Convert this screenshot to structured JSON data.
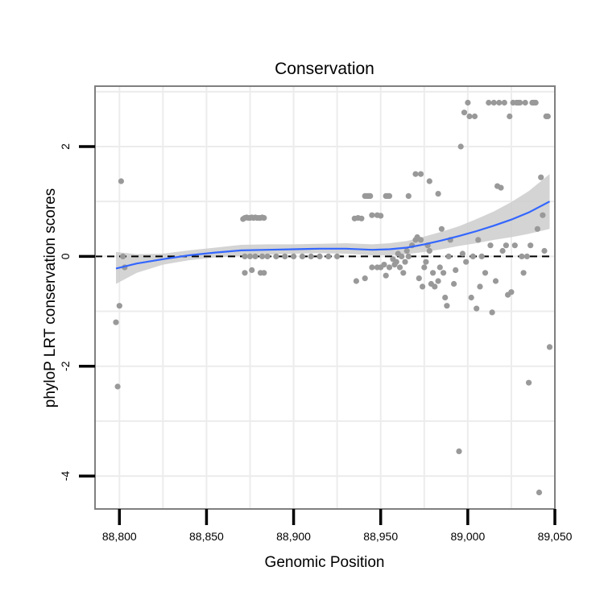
{
  "chart_data": {
    "type": "scatter",
    "title": "Conservation",
    "xlabel": "Genomic Position",
    "ylabel": "phyloP LRT conservation scores",
    "xlim": [
      88786,
      89050
    ],
    "ylim": [
      -4.6,
      3.1
    ],
    "xticks": [
      88800,
      88850,
      88900,
      88950,
      89000,
      89050
    ],
    "xtick_labels": [
      "88,800",
      "88,850",
      "88,900",
      "88,950",
      "89,000",
      "89,050"
    ],
    "yticks": [
      -4,
      -2,
      0,
      2
    ],
    "ytick_labels": [
      "-4",
      "-2",
      "0",
      "2"
    ],
    "grid": true,
    "reference_line": {
      "y": 0,
      "style": "dashed"
    },
    "colors": {
      "points": "#999999",
      "smooth_line": "#3366ff",
      "confidence_band": "#cccccc",
      "grid": "#ececec",
      "border": "#7f7f7f"
    },
    "points": [
      [
        88798,
        -1.2
      ],
      [
        88799,
        -2.37
      ],
      [
        88800,
        -0.9
      ],
      [
        88801,
        1.37
      ],
      [
        88802,
        0.0
      ],
      [
        88803,
        -0.2
      ],
      [
        88871,
        0.68
      ],
      [
        88872,
        0.7
      ],
      [
        88873,
        0.71
      ],
      [
        88874,
        0.7
      ],
      [
        88875,
        0.7
      ],
      [
        88876,
        0.71
      ],
      [
        88877,
        0.7
      ],
      [
        88878,
        0.71
      ],
      [
        88879,
        0.7
      ],
      [
        88880,
        0.7
      ],
      [
        88881,
        0.7
      ],
      [
        88882,
        0.71
      ],
      [
        88883,
        0.7
      ],
      [
        88872,
        -0.3
      ],
      [
        88876,
        -0.25
      ],
      [
        88881,
        -0.3
      ],
      [
        88883,
        -0.3
      ],
      [
        88872,
        0.0
      ],
      [
        88875,
        0.0
      ],
      [
        88878,
        0.0
      ],
      [
        88882,
        0.0
      ],
      [
        88885,
        0.0
      ],
      [
        88890,
        0.0
      ],
      [
        88895,
        0.0
      ],
      [
        88900,
        0.0
      ],
      [
        88905,
        0.0
      ],
      [
        88910,
        0.0
      ],
      [
        88915,
        0.0
      ],
      [
        88920,
        0.0
      ],
      [
        88925,
        0.0
      ],
      [
        88935,
        0.69
      ],
      [
        88937,
        0.7
      ],
      [
        88939,
        0.69
      ],
      [
        88941,
        1.1
      ],
      [
        88942,
        1.1
      ],
      [
        88943,
        1.1
      ],
      [
        88944,
        1.1
      ],
      [
        88945,
        0.75
      ],
      [
        88948,
        0.75
      ],
      [
        88950,
        0.74
      ],
      [
        88953,
        1.1
      ],
      [
        88954,
        1.1
      ],
      [
        88955,
        1.1
      ],
      [
        88966,
        1.1
      ],
      [
        88970,
        1.5
      ],
      [
        88973,
        1.5
      ],
      [
        88978,
        1.37
      ],
      [
        88983,
        1.14
      ],
      [
        88936,
        -0.45
      ],
      [
        88941,
        -0.4
      ],
      [
        88945,
        -0.2
      ],
      [
        88948,
        -0.2
      ],
      [
        88950,
        -0.2
      ],
      [
        88952,
        -0.15
      ],
      [
        88953,
        -0.35
      ],
      [
        88955,
        -0.2
      ],
      [
        88957,
        -0.05
      ],
      [
        88958,
        -0.15
      ],
      [
        88959,
        -0.1
      ],
      [
        88960,
        0.05
      ],
      [
        88961,
        -0.2
      ],
      [
        88962,
        0.0
      ],
      [
        88963,
        -0.3
      ],
      [
        88964,
        -0.1
      ],
      [
        88965,
        0.1
      ],
      [
        88966,
        0.0
      ],
      [
        88968,
        0.2
      ],
      [
        88970,
        0.3
      ],
      [
        88971,
        0.35
      ],
      [
        88972,
        -0.4
      ],
      [
        88973,
        0.3
      ],
      [
        88974,
        -0.55
      ],
      [
        88975,
        -0.2
      ],
      [
        88976,
        -0.1
      ],
      [
        88977,
        0.2
      ],
      [
        88978,
        0.1
      ],
      [
        88979,
        -0.5
      ],
      [
        88980,
        -0.3
      ],
      [
        88981,
        -0.55
      ],
      [
        88983,
        -0.45
      ],
      [
        88984,
        -0.2
      ],
      [
        88985,
        0.5
      ],
      [
        88986,
        -0.3
      ],
      [
        88987,
        -0.75
      ],
      [
        88988,
        -0.9
      ],
      [
        88989,
        0.0
      ],
      [
        88990,
        0.3
      ],
      [
        88992,
        -0.5
      ],
      [
        88993,
        -0.25
      ],
      [
        88995,
        -3.55
      ],
      [
        88996,
        2.0
      ],
      [
        88997,
        0.05
      ],
      [
        88998,
        2.62
      ],
      [
        88999,
        -0.1
      ],
      [
        89000,
        2.8
      ],
      [
        89001,
        2.55
      ],
      [
        89002,
        -0.75
      ],
      [
        89003,
        0.0
      ],
      [
        89004,
        2.55
      ],
      [
        89005,
        -0.95
      ],
      [
        89006,
        0.3
      ],
      [
        89007,
        -0.55
      ],
      [
        89008,
        0.0
      ],
      [
        89010,
        -0.3
      ],
      [
        89012,
        2.8
      ],
      [
        89013,
        0.2
      ],
      [
        89014,
        -1.02
      ],
      [
        89015,
        2.8
      ],
      [
        89016,
        -0.45
      ],
      [
        89017,
        1.28
      ],
      [
        89018,
        2.8
      ],
      [
        89019,
        1.25
      ],
      [
        89020,
        0.1
      ],
      [
        89021,
        2.8
      ],
      [
        89022,
        0.2
      ],
      [
        89023,
        -0.7
      ],
      [
        89024,
        2.55
      ],
      [
        89025,
        -0.65
      ],
      [
        89026,
        2.8
      ],
      [
        89027,
        0.2
      ],
      [
        89028,
        2.8
      ],
      [
        89029,
        2.8
      ],
      [
        89030,
        2.8
      ],
      [
        89031,
        0.0
      ],
      [
        89032,
        -0.3
      ],
      [
        89033,
        2.8
      ],
      [
        89034,
        0.0
      ],
      [
        89035,
        -2.3
      ],
      [
        89036,
        0.2
      ],
      [
        89037,
        2.8
      ],
      [
        89038,
        2.8
      ],
      [
        89039,
        2.8
      ],
      [
        89040,
        0.5
      ],
      [
        89041,
        -4.3
      ],
      [
        89042,
        1.44
      ],
      [
        89043,
        0.75
      ],
      [
        89044,
        0.1
      ],
      [
        89045,
        2.55
      ],
      [
        89046,
        2.55
      ],
      [
        89047,
        -1.65
      ]
    ],
    "smooth": {
      "x": [
        88798,
        88810,
        88825,
        88840,
        88855,
        88870,
        88885,
        88900,
        88915,
        88930,
        88945,
        88955,
        88965,
        88975,
        88985,
        88995,
        89005,
        89015,
        89025,
        89035,
        89047
      ],
      "y": [
        -0.22,
        -0.13,
        -0.05,
        0.02,
        0.07,
        0.11,
        0.12,
        0.13,
        0.14,
        0.14,
        0.12,
        0.13,
        0.16,
        0.22,
        0.29,
        0.37,
        0.46,
        0.56,
        0.67,
        0.8,
        1.0
      ],
      "lower": [
        -0.5,
        -0.3,
        -0.15,
        -0.07,
        -0.02,
        0.01,
        0.03,
        0.05,
        0.06,
        0.05,
        0.02,
        0.02,
        0.04,
        0.08,
        0.13,
        0.19,
        0.24,
        0.3,
        0.35,
        0.41,
        0.5
      ],
      "upper": [
        0.08,
        0.04,
        0.05,
        0.11,
        0.16,
        0.21,
        0.22,
        0.22,
        0.23,
        0.24,
        0.22,
        0.24,
        0.28,
        0.36,
        0.45,
        0.55,
        0.68,
        0.82,
        0.99,
        1.19,
        1.5
      ]
    }
  }
}
